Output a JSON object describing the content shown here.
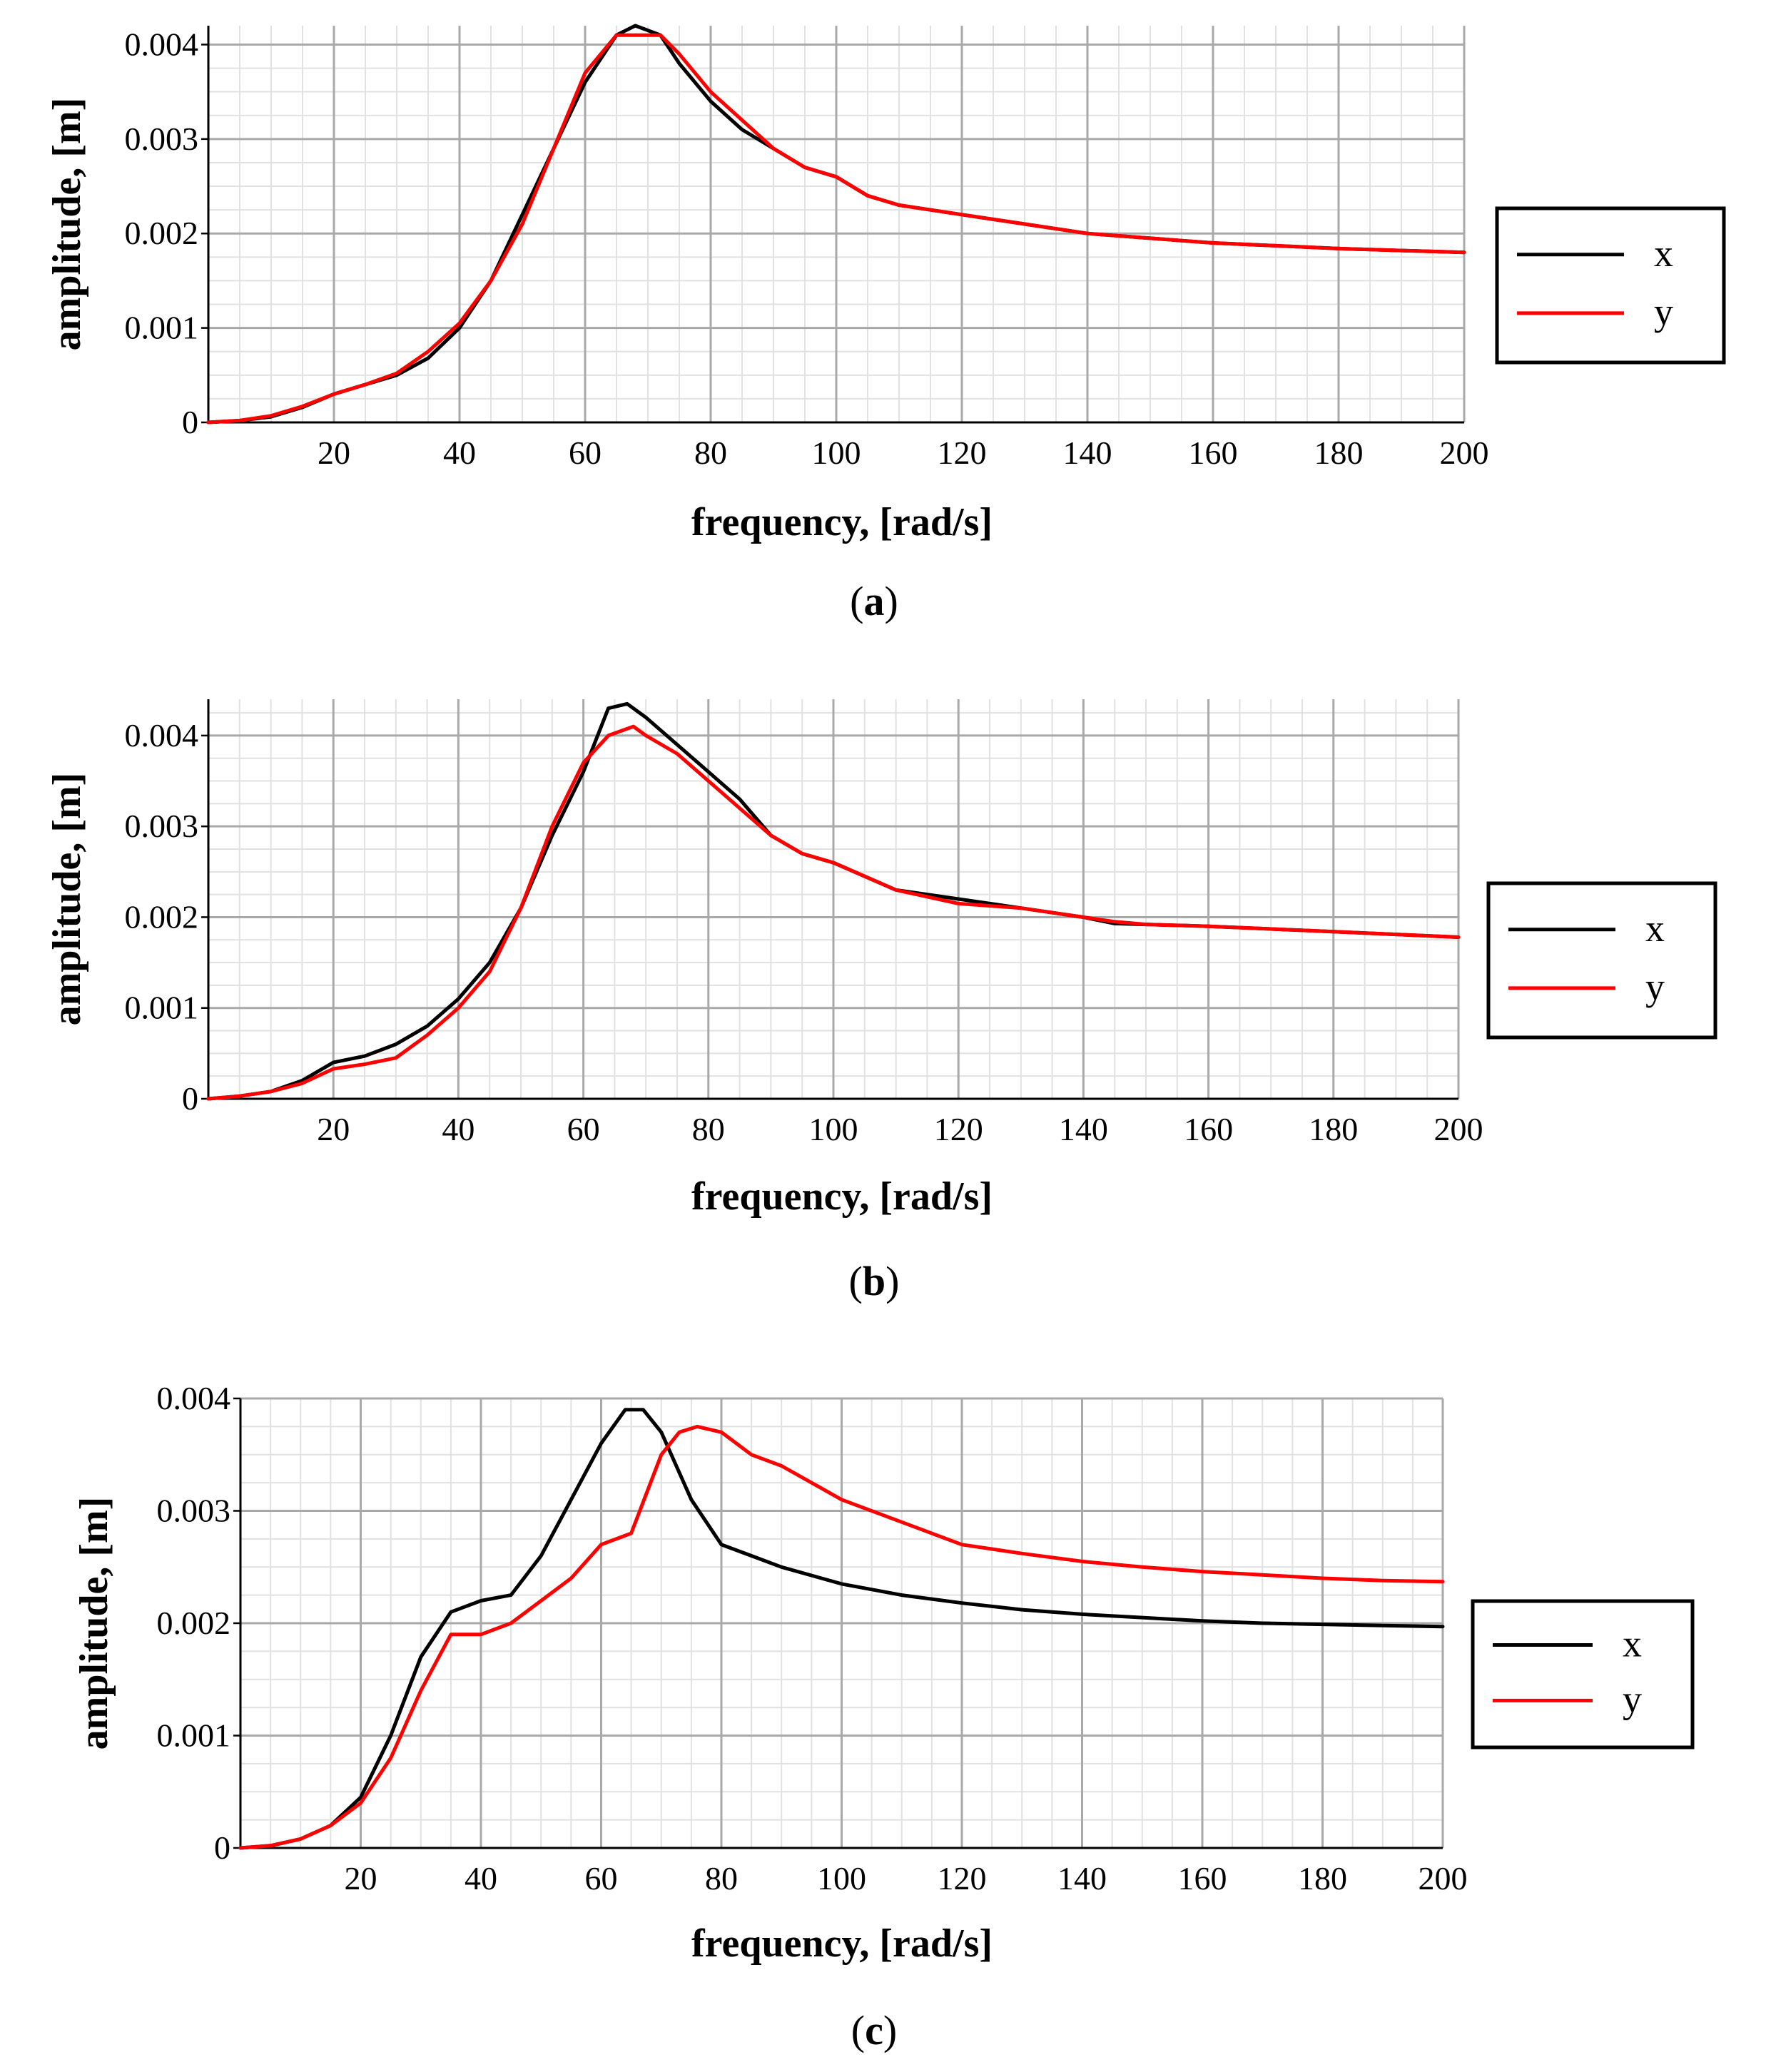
{
  "chart_data": [
    {
      "type": "line",
      "caption": "a",
      "xlabel": "frequency, [rad/s]",
      "ylabel": "amplitude, [m]",
      "xlim": [
        0,
        200
      ],
      "ylim": [
        0,
        0.0042
      ],
      "xticks": [
        20,
        40,
        60,
        80,
        100,
        120,
        140,
        160,
        180,
        200
      ],
      "yticks": [
        0,
        0.001,
        0.002,
        0.003,
        0.004
      ],
      "ytick_labels": [
        "0",
        "0.001",
        "0.002",
        "0.003",
        "0.004"
      ],
      "grid": true,
      "legend_position": "right",
      "series": [
        {
          "name": "x",
          "color": "#000000",
          "x": [
            0,
            5,
            10,
            15,
            20,
            25,
            30,
            35,
            40,
            45,
            50,
            55,
            60,
            65,
            68,
            72,
            75,
            80,
            85,
            90,
            95,
            100,
            105,
            110,
            120,
            130,
            140,
            150,
            160,
            170,
            180,
            190,
            200
          ],
          "y": [
            0,
            2e-05,
            6e-05,
            0.00016,
            0.0003,
            0.0004,
            0.0005,
            0.00068,
            0.001,
            0.0015,
            0.0022,
            0.0029,
            0.0036,
            0.0041,
            0.0042,
            0.0041,
            0.0038,
            0.0034,
            0.0031,
            0.0029,
            0.0027,
            0.0026,
            0.0024,
            0.0023,
            0.0022,
            0.0021,
            0.002,
            0.00195,
            0.0019,
            0.00187,
            0.00184,
            0.00182,
            0.0018
          ]
        },
        {
          "name": "y",
          "color": "#ff0000",
          "x": [
            0,
            5,
            10,
            15,
            20,
            25,
            30,
            35,
            40,
            45,
            50,
            55,
            60,
            65,
            68,
            72,
            75,
            80,
            85,
            90,
            95,
            100,
            105,
            110,
            120,
            130,
            140,
            150,
            160,
            170,
            180,
            190,
            200
          ],
          "y": [
            0,
            2e-05,
            7e-05,
            0.00017,
            0.0003,
            0.0004,
            0.00052,
            0.00075,
            0.00105,
            0.0015,
            0.0021,
            0.0029,
            0.0037,
            0.0041,
            0.0041,
            0.0041,
            0.0039,
            0.0035,
            0.0032,
            0.0029,
            0.0027,
            0.0026,
            0.0024,
            0.0023,
            0.0022,
            0.0021,
            0.002,
            0.00195,
            0.0019,
            0.00187,
            0.00184,
            0.00182,
            0.0018
          ]
        }
      ]
    },
    {
      "type": "line",
      "caption": "b",
      "xlabel": "frequency, [rad/s]",
      "ylabel": "amplitude, [m]",
      "xlim": [
        0,
        200
      ],
      "ylim": [
        0,
        0.0044
      ],
      "xticks": [
        20,
        40,
        60,
        80,
        100,
        120,
        140,
        160,
        180,
        200
      ],
      "yticks": [
        0,
        0.001,
        0.002,
        0.003,
        0.004
      ],
      "ytick_labels": [
        "0",
        "0.001",
        "0.002",
        "0.003",
        "0.004"
      ],
      "grid": true,
      "legend_position": "right",
      "series": [
        {
          "name": "x",
          "color": "#000000",
          "x": [
            0,
            5,
            10,
            15,
            20,
            25,
            30,
            35,
            40,
            45,
            50,
            55,
            60,
            64,
            67,
            70,
            75,
            80,
            85,
            90,
            95,
            100,
            110,
            120,
            130,
            140,
            145,
            150,
            160,
            170,
            180,
            190,
            200
          ],
          "y": [
            0,
            3e-05,
            8e-05,
            0.0002,
            0.0004,
            0.00047,
            0.0006,
            0.0008,
            0.0011,
            0.0015,
            0.0021,
            0.0029,
            0.0036,
            0.0043,
            0.00435,
            0.0042,
            0.0039,
            0.0036,
            0.0033,
            0.0029,
            0.0027,
            0.0026,
            0.0023,
            0.0022,
            0.0021,
            0.002,
            0.00193,
            0.00192,
            0.0019,
            0.00187,
            0.00184,
            0.00181,
            0.00178
          ]
        },
        {
          "name": "y",
          "color": "#ff0000",
          "x": [
            0,
            5,
            10,
            15,
            20,
            25,
            30,
            35,
            40,
            45,
            50,
            55,
            60,
            64,
            68,
            70,
            75,
            80,
            85,
            90,
            95,
            100,
            110,
            120,
            130,
            140,
            145,
            150,
            160,
            170,
            180,
            190,
            200
          ],
          "y": [
            0,
            3e-05,
            8e-05,
            0.00017,
            0.00033,
            0.00038,
            0.00045,
            0.0007,
            0.001,
            0.0014,
            0.0021,
            0.003,
            0.0037,
            0.004,
            0.0041,
            0.004,
            0.0038,
            0.0035,
            0.0032,
            0.0029,
            0.0027,
            0.0026,
            0.0023,
            0.00215,
            0.0021,
            0.002,
            0.00195,
            0.00192,
            0.0019,
            0.00187,
            0.00184,
            0.00181,
            0.00178
          ]
        }
      ]
    },
    {
      "type": "line",
      "caption": "c",
      "xlabel": "frequency, [rad/s]",
      "ylabel": "amplitude, [m]",
      "xlim": [
        0,
        200
      ],
      "ylim": [
        0,
        0.004
      ],
      "xticks": [
        20,
        40,
        60,
        80,
        100,
        120,
        140,
        160,
        180,
        200
      ],
      "yticks": [
        0,
        0.001,
        0.002,
        0.003,
        0.004
      ],
      "ytick_labels": [
        "0",
        "0.001",
        "0.002",
        "0.003",
        "0.004"
      ],
      "grid": true,
      "legend_position": "right",
      "series": [
        {
          "name": "x",
          "color": "#000000",
          "x": [
            0,
            5,
            10,
            15,
            20,
            25,
            30,
            35,
            40,
            45,
            50,
            55,
            60,
            64,
            67,
            70,
            75,
            80,
            85,
            90,
            100,
            110,
            120,
            130,
            140,
            150,
            160,
            170,
            180,
            190,
            200
          ],
          "y": [
            0,
            2e-05,
            8e-05,
            0.0002,
            0.00045,
            0.001,
            0.0017,
            0.0021,
            0.0022,
            0.00225,
            0.0026,
            0.0031,
            0.0036,
            0.0039,
            0.0039,
            0.0037,
            0.0031,
            0.0027,
            0.0026,
            0.0025,
            0.00235,
            0.00225,
            0.00218,
            0.00212,
            0.00208,
            0.00205,
            0.00202,
            0.002,
            0.00199,
            0.00198,
            0.00197
          ]
        },
        {
          "name": "y",
          "color": "#ff0000",
          "x": [
            0,
            5,
            10,
            15,
            20,
            25,
            30,
            35,
            40,
            45,
            50,
            55,
            60,
            65,
            70,
            73,
            76,
            80,
            85,
            90,
            100,
            110,
            120,
            130,
            140,
            150,
            160,
            170,
            180,
            190,
            200
          ],
          "y": [
            0,
            2e-05,
            8e-05,
            0.0002,
            0.0004,
            0.0008,
            0.0014,
            0.0019,
            0.0019,
            0.002,
            0.0022,
            0.0024,
            0.0027,
            0.0028,
            0.0035,
            0.0037,
            0.00375,
            0.0037,
            0.0035,
            0.0034,
            0.0031,
            0.0029,
            0.0027,
            0.00262,
            0.00255,
            0.0025,
            0.00246,
            0.00243,
            0.0024,
            0.00238,
            0.00237
          ]
        }
      ]
    }
  ]
}
